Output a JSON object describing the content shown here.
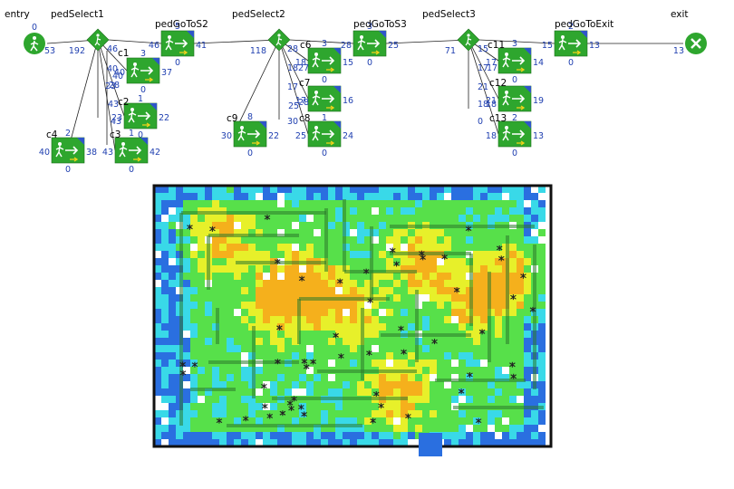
{
  "flowchart": {
    "nodes": [
      {
        "id": "entry",
        "kind": "source",
        "label": "entry",
        "counts": {
          "top": "0",
          "left": "",
          "right": "53",
          "bottom": ""
        }
      },
      {
        "id": "pedSelect1",
        "kind": "select",
        "label": "pedSelect1",
        "counts": {
          "top": "",
          "left": "192",
          "right": "46",
          "bottom": ""
        }
      },
      {
        "id": "pedGoToS2",
        "kind": "goto",
        "label": "pedGoToS2",
        "counts": {
          "top": "5",
          "left": "46",
          "right": "41",
          "bottom": "0"
        }
      },
      {
        "id": "pedSelect2",
        "kind": "select",
        "label": "pedSelect2",
        "counts": {
          "top": "",
          "left": "118",
          "right": "28",
          "bottom": ""
        }
      },
      {
        "id": "pedGoToS3",
        "kind": "goto",
        "label": "pedGoToS3",
        "counts": {
          "top": "3",
          "left": "28",
          "right": "25",
          "bottom": "0"
        }
      },
      {
        "id": "pedSelect3",
        "kind": "select",
        "label": "pedSelect3",
        "counts": {
          "top": "",
          "left": "71",
          "right": "15",
          "bottom": ""
        }
      },
      {
        "id": "pedGoToExit",
        "kind": "goto",
        "label": "pedGoToExit",
        "counts": {
          "top": "2",
          "left": "15",
          "right": "13",
          "bottom": "0"
        }
      },
      {
        "id": "exit",
        "kind": "sink",
        "label": "exit",
        "counts": {
          "top": "",
          "left": "13",
          "right": "",
          "bottom": ""
        }
      },
      {
        "id": "c1a",
        "kind": "goto",
        "label": "c1",
        "counts": {
          "top": "3",
          "left": "40",
          "right": "37",
          "bottom": "0"
        }
      },
      {
        "id": "c2",
        "kind": "goto",
        "label": "c2",
        "counts": {
          "top": "1",
          "left": "23",
          "right": "22",
          "bottom": "0"
        }
      },
      {
        "id": "c3",
        "kind": "goto",
        "label": "c3",
        "counts": {
          "top": "1",
          "left": "43",
          "right": "42",
          "bottom": "0"
        }
      },
      {
        "id": "c4",
        "kind": "goto",
        "label": "c4",
        "counts": {
          "top": "2",
          "left": "40",
          "right": "38",
          "bottom": "0"
        }
      },
      {
        "id": "c6a",
        "kind": "goto",
        "label": "c6",
        "counts": {
          "top": "3",
          "left": "18",
          "right": "15",
          "bottom": "0"
        }
      },
      {
        "id": "c7",
        "kind": "goto",
        "label": "c7",
        "counts": {
          "top": "",
          "left": "17",
          "right": "16",
          "bottom": "1"
        }
      },
      {
        "id": "c8",
        "kind": "goto",
        "label": "c8",
        "counts": {
          "top": "",
          "left": "25",
          "right": "24",
          "bottom": "0"
        }
      },
      {
        "id": "c9",
        "kind": "goto",
        "label": "c9",
        "counts": {
          "top": "8",
          "left": "30",
          "right": "22",
          "bottom": "0"
        }
      },
      {
        "id": "c11a",
        "kind": "goto",
        "label": "c11",
        "counts": {
          "top": "3",
          "left": "17",
          "right": "14",
          "bottom": "0"
        }
      },
      {
        "id": "c12",
        "kind": "goto",
        "label": "c12",
        "counts": {
          "top": "",
          "left": "21",
          "right": "19",
          "bottom": "2"
        }
      },
      {
        "id": "c13",
        "kind": "goto",
        "label": "c13",
        "counts": {
          "top": "",
          "left": "18",
          "right": "13",
          "bottom": "0"
        }
      }
    ],
    "branch_counts": {
      "pedSelect1": [
        "46",
        "40",
        "40",
        "23",
        "28",
        "43",
        "43"
      ],
      "pedSelect2": [
        "28",
        "18",
        "27",
        "17",
        "28",
        "25",
        "30"
      ],
      "pedSelect3": [
        "15",
        "17",
        "17",
        "21",
        "18",
        "18",
        "0"
      ]
    }
  },
  "colors": {
    "block_green": "#2ea62e",
    "node_label": "#000000",
    "count_text": "#1f3fb0",
    "heat_blue": "#2a6fe0",
    "heat_cyan": "#39d9e8",
    "heat_green": "#57e04a",
    "heat_yellow": "#e7f02a",
    "heat_orange": "#f5b01c",
    "wall": "#2b7a2b"
  },
  "icons": {
    "goto_block": "walking-person-arrow-icon",
    "select_block": "diamond-walker-icon",
    "source_block": "walking-person-circle-icon",
    "sink_block": "x-circle-icon",
    "pedestrian": "pedestrian-marker-icon"
  }
}
